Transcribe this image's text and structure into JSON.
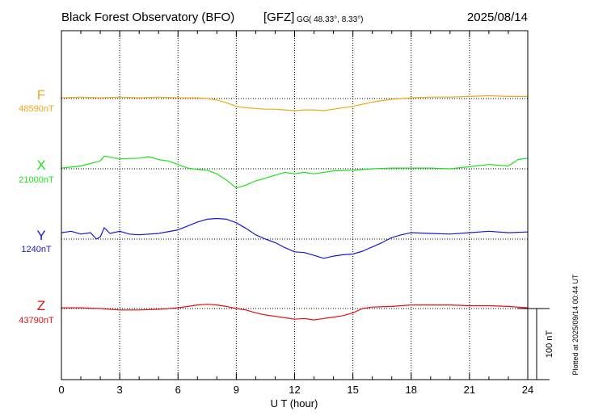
{
  "header": {
    "observatory": "Black Forest Observatory (BFO)",
    "institute": "[GFZ]",
    "coord_system": "GG",
    "coords": "( 48.33°,   8.33°)",
    "date": "2025/08/14"
  },
  "footer": {
    "plotted_note": "Plotted at 2025/09/14 00:44 UT"
  },
  "chart_data": {
    "type": "line",
    "title": "Black Forest Observatory (BFO)",
    "xlabel": "U T (hour)",
    "ylabel": "",
    "xlim": [
      0,
      24
    ],
    "x_ticks": [
      0,
      3,
      6,
      9,
      12,
      15,
      18,
      21,
      24
    ],
    "x_tick_labels": [
      "0",
      "3",
      "6",
      "9",
      "12",
      "15",
      "18",
      "21",
      "24"
    ],
    "grid": true,
    "scale_bar": {
      "value": 100,
      "label": "100 nT"
    },
    "series": [
      {
        "name": "F",
        "baseline_label": "48590nT",
        "baseline": 48590,
        "color": "#f0a818",
        "x": [
          0,
          1,
          2,
          3,
          4,
          5,
          6,
          7,
          7.5,
          8,
          8.5,
          9,
          9.5,
          10,
          10.5,
          11,
          11.5,
          12,
          12.5,
          13,
          13.5,
          14,
          14.5,
          15,
          15.5,
          16,
          17,
          18,
          19,
          20,
          21,
          22,
          23,
          24
        ],
        "y": [
          48591,
          48592,
          48591,
          48592,
          48591,
          48592,
          48591,
          48591,
          48590,
          48588,
          48584,
          48579,
          48577,
          48576,
          48575,
          48575,
          48574,
          48573,
          48574,
          48574,
          48573,
          48575,
          48577,
          48579,
          48582,
          48585,
          48589,
          48591,
          48592,
          48592,
          48593,
          48594,
          48593,
          48593
        ]
      },
      {
        "name": "X",
        "baseline_label": "21000nT",
        "baseline": 21000,
        "color": "#1fe01f",
        "x": [
          0,
          1,
          2,
          2.2,
          3,
          4,
          4.5,
          5,
          5.5,
          6,
          6.5,
          7,
          7.5,
          8,
          8.5,
          9,
          9.5,
          10,
          11,
          11.5,
          12,
          12.5,
          13,
          14,
          15,
          16,
          17,
          18,
          19,
          20,
          21,
          22,
          23,
          23.5,
          24
        ],
        "y": [
          21001,
          21004,
          21011,
          21018,
          21014,
          21015,
          21017,
          21013,
          21011,
          21006,
          21001,
          20999,
          20998,
          20993,
          20984,
          20973,
          20977,
          20983,
          20991,
          20995,
          20993,
          20995,
          20993,
          20997,
          20998,
          21000,
          21001,
          21001,
          21001,
          21000,
          21003,
          21006,
          21004,
          21013,
          21015
        ]
      },
      {
        "name": "Y",
        "baseline_label": "1240nT",
        "baseline": 1240,
        "color": "#1818d0",
        "x": [
          0,
          0.5,
          1,
          1.5,
          1.8,
          2.0,
          2.2,
          2.5,
          3,
          3.5,
          4,
          5,
          6,
          7,
          7.5,
          8,
          8.5,
          9,
          9.5,
          10,
          10.5,
          11,
          11.5,
          12,
          12.5,
          13,
          13.5,
          14,
          14.5,
          15,
          15.5,
          16,
          16.5,
          17,
          17.5,
          18,
          19,
          20,
          21,
          22,
          23,
          24
        ],
        "y": [
          1249,
          1251,
          1247,
          1249,
          1240,
          1243,
          1256,
          1248,
          1251,
          1247,
          1246,
          1248,
          1253,
          1264,
          1268,
          1269,
          1268,
          1263,
          1255,
          1246,
          1240,
          1235,
          1228,
          1222,
          1221,
          1217,
          1213,
          1216,
          1218,
          1219,
          1223,
          1229,
          1235,
          1242,
          1246,
          1249,
          1248,
          1247,
          1249,
          1251,
          1249,
          1250
        ]
      },
      {
        "name": "Z",
        "baseline_label": "43790nT",
        "baseline": 43790,
        "color": "#e01010",
        "x": [
          0,
          1,
          2,
          3,
          4,
          5,
          6,
          7,
          7.5,
          8,
          8.5,
          9,
          9.5,
          10,
          10.5,
          11,
          11.5,
          12,
          12.5,
          13,
          13.5,
          14,
          14.5,
          15,
          15.5,
          16,
          17,
          18,
          19,
          20,
          21,
          22,
          23,
          24
        ],
        "y": [
          43791,
          43791,
          43790,
          43788,
          43788,
          43789,
          43791,
          43795,
          43796,
          43795,
          43793,
          43790,
          43788,
          43784,
          43781,
          43779,
          43777,
          43775,
          43776,
          43774,
          43776,
          43778,
          43780,
          43784,
          43790,
          43792,
          43793,
          43795,
          43795,
          43795,
          43794,
          43794,
          43793,
          43791
        ]
      }
    ]
  }
}
